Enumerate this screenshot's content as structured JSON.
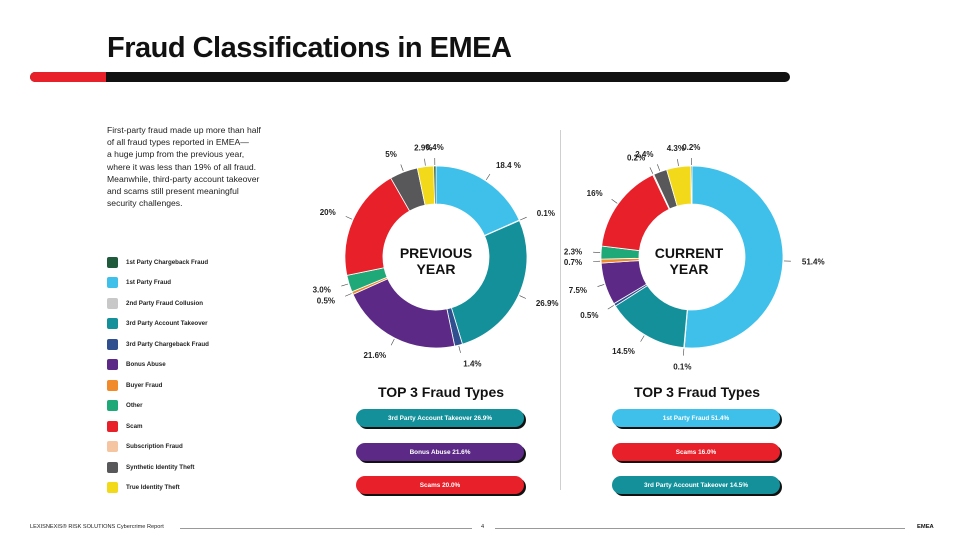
{
  "page": {
    "title": "Fraud Classifications in EMEA",
    "intro_lines": [
      "First-party fraud made up more than half",
      "of all fraud types reported in EMEA—",
      "a huge jump from the previous year,",
      "where it was less than 19% of all fraud.",
      "Meanwhile, third-party account takeover",
      "and scams still present meaningful",
      "security challenges."
    ],
    "accent_color": "#e8202a"
  },
  "legend": [
    {
      "label": "1st Party Chargeback Fraud",
      "color": "#1f5a3c"
    },
    {
      "label": "1st Party Fraud",
      "color": "#3fc0ea"
    },
    {
      "label": "2nd Party Fraud Collusion",
      "color": "#c8c8c8"
    },
    {
      "label": "3rd Party Account Takeover",
      "color": "#13909a"
    },
    {
      "label": "3rd Party Chargeback Fraud",
      "color": "#2f4f8f"
    },
    {
      "label": "Bonus Abuse",
      "color": "#5c2a86"
    },
    {
      "label": "Buyer Fraud",
      "color": "#f08a2a"
    },
    {
      "label": "Other",
      "color": "#1fa878"
    },
    {
      "label": "Scam",
      "color": "#e8202a"
    },
    {
      "label": "Subscription Fraud",
      "color": "#f5c4a0"
    },
    {
      "label": "Synthetic Identity Theft",
      "color": "#58585a"
    },
    {
      "label": "True Identity Theft",
      "color": "#f2da1a"
    }
  ],
  "chart_data": [
    {
      "type": "pie",
      "title": "PREVIOUS YEAR",
      "title_lines": [
        "PREVIOUS",
        "YEAR"
      ],
      "slices": [
        {
          "label": "1st Party Fraud",
          "value": 18.4,
          "display": "18.4 %",
          "color": "#3fc0ea"
        },
        {
          "label": "2nd Party Fraud Collusion",
          "value": 0.1,
          "display": "0.1%",
          "color": "#c8c8c8"
        },
        {
          "label": "3rd Party Account Takeover",
          "value": 26.9,
          "display": "26.9%",
          "color": "#13909a"
        },
        {
          "label": "3rd Party Chargeback Fraud",
          "value": 1.4,
          "display": "1.4%",
          "color": "#2f4f8f"
        },
        {
          "label": "Bonus Abuse",
          "value": 21.6,
          "display": "21.6%",
          "color": "#5c2a86"
        },
        {
          "label": "Buyer Fraud",
          "value": 0.5,
          "display": "0.5%",
          "color": "#f08a2a"
        },
        {
          "label": "Other",
          "value": 3.0,
          "display": "3.0%",
          "color": "#1fa878"
        },
        {
          "label": "Scam",
          "value": 20.0,
          "display": "20%",
          "color": "#e8202a"
        },
        {
          "label": "Synthetic Identity Theft",
          "value": 5.0,
          "display": "5%",
          "color": "#58585a"
        },
        {
          "label": "True Identity Theft",
          "value": 2.9,
          "display": "2.9%",
          "color": "#f2da1a"
        },
        {
          "label": "1st Party Chargeback Fraud",
          "value": 0.4,
          "display": "0.4%",
          "color": "#1f5a3c"
        }
      ]
    },
    {
      "type": "pie",
      "title": "CURRENT YEAR",
      "title_lines": [
        "CURRENT",
        "YEAR"
      ],
      "slices": [
        {
          "label": "1st Party Fraud",
          "value": 51.4,
          "display": "51.4%",
          "color": "#3fc0ea"
        },
        {
          "label": "2nd Party Fraud Collusion",
          "value": 0.1,
          "display": "0.1%",
          "color": "#c8c8c8"
        },
        {
          "label": "3rd Party Account Takeover",
          "value": 14.5,
          "display": "14.5%",
          "color": "#13909a"
        },
        {
          "label": "3rd Party Chargeback Fraud",
          "value": 0.5,
          "display": "0.5%",
          "color": "#2f4f8f"
        },
        {
          "label": "Bonus Abuse",
          "value": 7.5,
          "display": "7.5%",
          "color": "#5c2a86"
        },
        {
          "label": "Buyer Fraud",
          "value": 0.7,
          "display": "0.7%",
          "color": "#f08a2a"
        },
        {
          "label": "Other",
          "value": 2.3,
          "display": "2.3%",
          "color": "#1fa878"
        },
        {
          "label": "Scam",
          "value": 16.0,
          "display": "16%",
          "color": "#e8202a"
        },
        {
          "label": "Subscription Fraud",
          "value": 0.2,
          "display": "0.2%",
          "color": "#f5c4a0"
        },
        {
          "label": "Synthetic Identity Theft",
          "value": 2.4,
          "display": "2.4%",
          "color": "#58585a"
        },
        {
          "label": "True Identity Theft",
          "value": 4.3,
          "display": "4.3%",
          "color": "#f2da1a"
        },
        {
          "label": "1st Party Chargeback Fraud",
          "value": 0.2,
          "display": "0.2%",
          "color": "#1f5a3c"
        }
      ]
    }
  ],
  "top3": {
    "title": "TOP 3 Fraud Types",
    "previous": [
      {
        "label": "3rd Party Account Takeover 26.9%",
        "color": "#13909a"
      },
      {
        "label": "Bonus Abuse 21.6%",
        "color": "#5c2a86"
      },
      {
        "label": "Scams 20.0%",
        "color": "#e8202a"
      }
    ],
    "current": [
      {
        "label": "1st Party Fraud 51.4%",
        "color": "#3fc0ea"
      },
      {
        "label": "Scams 16.0%",
        "color": "#e8202a"
      },
      {
        "label": "3rd Party Account Takeover 14.5%",
        "color": "#13909a"
      }
    ]
  },
  "footer": {
    "left": "LEXISNEXIS® RISK SOLUTIONS Cybercrime Report",
    "page": "4",
    "right": "EMEA"
  }
}
